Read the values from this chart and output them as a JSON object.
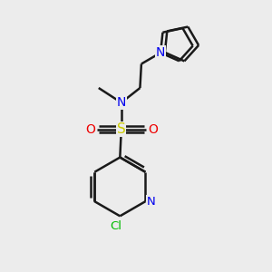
{
  "bg_color": "#ececec",
  "bond_color": "#1a1a1a",
  "bond_width": 1.8,
  "N_color": "#0000ee",
  "O_color": "#ee0000",
  "S_color": "#cccc00",
  "Cl_color": "#00bb00",
  "figsize": [
    3.0,
    3.0
  ],
  "dpi": 100,
  "xlim": [
    0,
    10
  ],
  "ylim": [
    0,
    10
  ]
}
